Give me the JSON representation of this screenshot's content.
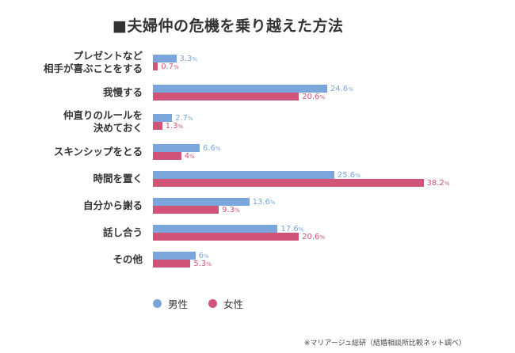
{
  "chart_data": {
    "type": "bar",
    "orientation": "horizontal",
    "title": "■夫婦仲の危機を乗り越えた方法",
    "categories": [
      [
        "プレゼントなど",
        "相手が喜ぶことをする"
      ],
      [
        "我慢する"
      ],
      [
        "仲直りのルールを",
        "決めておく"
      ],
      [
        "スキンシップをとる"
      ],
      [
        "時間を置く"
      ],
      [
        "自分から謝る"
      ],
      [
        "話し合う"
      ],
      [
        "その他"
      ]
    ],
    "series": [
      {
        "name": "男性",
        "color": "#7aa6dc",
        "label_color": "#7aa6dc",
        "values": [
          3.3,
          24.6,
          2.7,
          6.6,
          25.6,
          13.6,
          17.6,
          6
        ]
      },
      {
        "name": "女性",
        "color": "#d05478",
        "label_color": "#d05478",
        "values": [
          0.7,
          20.6,
          1.3,
          4,
          38.2,
          9.3,
          20.6,
          5.3
        ]
      }
    ],
    "unit": "%",
    "xlim": [
      0,
      40
    ],
    "grid": false,
    "legend_position": "bottom-left",
    "source": "※マリアージュ総研（結婚相談所比較ネット調べ）"
  }
}
